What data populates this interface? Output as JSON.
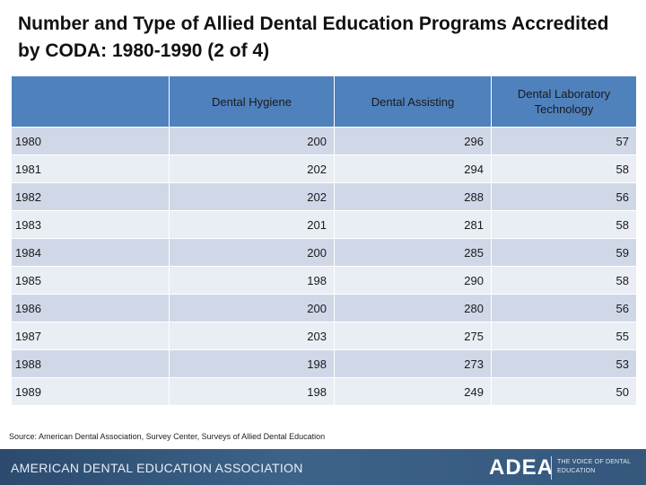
{
  "slide": {
    "title": "Number and Type of Allied Dental Education Programs Accredited by CODA: 1980-1990 (2 of 4)",
    "source": "Source: American Dental Association, Survey Center, Surveys of Allied Dental Education"
  },
  "table": {
    "headers": [
      "",
      "Dental Hygiene",
      "Dental Assisting",
      "Dental Laboratory Technology"
    ],
    "rows": [
      [
        "1980",
        "200",
        "296",
        "57"
      ],
      [
        "1981",
        "202",
        "294",
        "58"
      ],
      [
        "1982",
        "202",
        "288",
        "56"
      ],
      [
        "1983",
        "201",
        "281",
        "58"
      ],
      [
        "1984",
        "200",
        "285",
        "59"
      ],
      [
        "1985",
        "198",
        "290",
        "58"
      ],
      [
        "1986",
        "200",
        "280",
        "56"
      ],
      [
        "1987",
        "203",
        "275",
        "55"
      ],
      [
        "1988",
        "198",
        "273",
        "53"
      ],
      [
        "1989",
        "198",
        "249",
        "50"
      ]
    ]
  },
  "footer": {
    "organization": "AMERICAN DENTAL EDUCATION ASSOCIATION",
    "logo": "ADEA",
    "tagline": "THE VOICE OF DENTAL EDUCATION"
  },
  "colors": {
    "header_fill": "#4f81bd",
    "row_odd": "#d0d8e8",
    "row_even": "#e9edf4",
    "footer_band": "#35577c"
  }
}
